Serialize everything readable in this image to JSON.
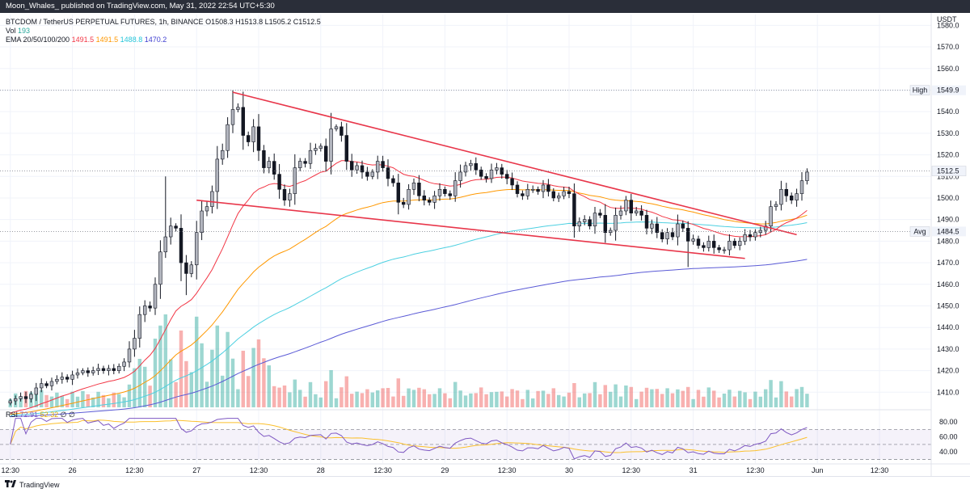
{
  "header": {
    "text": "Moon_Whales_ published on TradingView.com, May 31, 2022 22:54 UTC+5:30"
  },
  "legend": {
    "symbol": "BTCDOM / TetherUS PERPETUAL FUTURES, 1h, BINANCE",
    "o": "O1508.3",
    "h": "H1513.8",
    "l": "L1505.2",
    "c": "C1512.5",
    "vol_label": "Vol",
    "vol_value": "193",
    "ema_label": "EMA 20/50/100/200",
    "ema20": "1491.5",
    "ema50": "1491.5",
    "ema100": "1488.8",
    "ema200": "1470.2",
    "rsi_label": "RSI",
    "rsi_value": "72.91",
    "rsi_ma": "52.32",
    "rsi_x1": "∅",
    "rsi_x2": "∅"
  },
  "footer": {
    "brand": "TradingView"
  },
  "colors": {
    "up": "#26a69a",
    "down": "#ef5350",
    "candle_up_body": "#b2b5be",
    "candle_down_body": "#131722",
    "ema20": "#f23645",
    "ema50": "#ff9800",
    "ema100": "#4dd0e1",
    "ema200": "#5b5bd6",
    "wedge": "#e8364a",
    "rsi": "#7e57c2",
    "rsi_ma": "#fbc02d"
  },
  "chart_data": {
    "type": "candlestick",
    "currency": "USDT",
    "y_ticks": [
      1410,
      1420,
      1430,
      1440,
      1450,
      1460,
      1470,
      1480,
      1490,
      1500,
      1510,
      1520,
      1530,
      1540,
      1550,
      1560,
      1570,
      1580
    ],
    "y_tick_labels": [
      "1410.0",
      "1420.0",
      "1430.0",
      "1440.0",
      "1450.0",
      "1460.0",
      "1470.0",
      "1480.0",
      "1490.0",
      "1500.0",
      "1510.0",
      "1520.0",
      "1530.0",
      "1540.0",
      "1550.0",
      "1560.0",
      "1570.0",
      "1580.0"
    ],
    "ylim": [
      1403,
      1585
    ],
    "x_ticks": [
      {
        "label": "12:30",
        "x": 0
      },
      {
        "label": "26",
        "x": 12
      },
      {
        "label": "12:30",
        "x": 24
      },
      {
        "label": "27",
        "x": 36
      },
      {
        "label": "12:30",
        "x": 48
      },
      {
        "label": "28",
        "x": 60
      },
      {
        "label": "12:30",
        "x": 72
      },
      {
        "label": "29",
        "x": 84
      },
      {
        "label": "12:30",
        "x": 96
      },
      {
        "label": "30",
        "x": 108
      },
      {
        "label": "12:30",
        "x": 120
      },
      {
        "label": "31",
        "x": 132
      },
      {
        "label": "12:30",
        "x": 144
      },
      {
        "label": "Jun",
        "x": 156
      },
      {
        "label": "12:30",
        "x": 168
      }
    ],
    "xlim": [
      -2,
      178
    ],
    "price_tags": [
      {
        "label": "High",
        "value": "1549.9",
        "price": 1549.9
      },
      {
        "label": "",
        "value": "1512.5",
        "price": 1512.5
      },
      {
        "label": "Avg",
        "value": "1484.5",
        "price": 1484.5
      }
    ],
    "wedge_lines": [
      {
        "from": [
          43,
          1549
        ],
        "to": [
          152,
          1483
        ]
      },
      {
        "from": [
          36,
          1499
        ],
        "to": [
          142,
          1472
        ]
      }
    ],
    "candles_close": [
      1406,
      1407,
      1408,
      1407,
      1409,
      1412,
      1414,
      1413,
      1415,
      1416,
      1417,
      1416,
      1418,
      1419,
      1420,
      1419,
      1420,
      1421,
      1420,
      1421,
      1420,
      1422,
      1424,
      1430,
      1435,
      1446,
      1450,
      1449,
      1460,
      1475,
      1482,
      1487,
      1486,
      1470,
      1465,
      1469,
      1484,
      1494,
      1496,
      1503,
      1518,
      1522,
      1534,
      1541,
      1542,
      1529,
      1526,
      1533,
      1522,
      1514,
      1517,
      1511,
      1504,
      1499,
      1502,
      1514,
      1517,
      1516,
      1522,
      1523,
      1524,
      1517,
      1532,
      1533,
      1529,
      1517,
      1513,
      1515,
      1512,
      1510,
      1512,
      1517,
      1514,
      1509,
      1507,
      1498,
      1497,
      1504,
      1507,
      1501,
      1499,
      1498,
      1501,
      1504,
      1502,
      1501,
      1508,
      1512,
      1515,
      1516,
      1513,
      1510,
      1509,
      1513,
      1514,
      1511,
      1509,
      1506,
      1502,
      1501,
      1504,
      1504,
      1503,
      1506,
      1503,
      1500,
      1501,
      1503,
      1502,
      1487,
      1489,
      1490,
      1487,
      1493,
      1492,
      1484,
      1485,
      1492,
      1494,
      1499,
      1493,
      1494,
      1492,
      1486,
      1488,
      1484,
      1481,
      1484,
      1482,
      1488,
      1486,
      1480,
      1481,
      1478,
      1477,
      1480,
      1477,
      1476,
      1476,
      1480,
      1478,
      1480,
      1483,
      1482,
      1484,
      1485,
      1487,
      1496,
      1497,
      1504,
      1501,
      1499,
      1502,
      1508,
      1512
    ]
  }
}
